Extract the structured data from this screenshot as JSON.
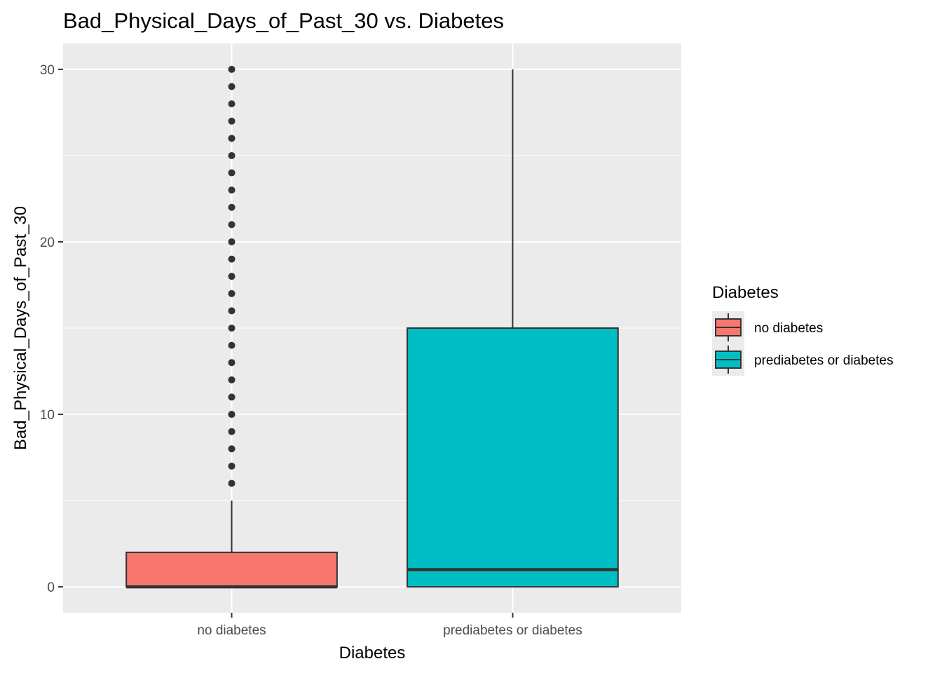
{
  "chart_data": {
    "type": "boxplot",
    "title": "Bad_Physical_Days_of_Past_30 vs. Diabetes",
    "xlabel": "Diabetes",
    "ylabel": "Bad_Physical_Days_of_Past_30",
    "ylim": [
      -1.5,
      31.5
    ],
    "yticks": [
      0,
      10,
      20,
      30
    ],
    "categories": [
      "no diabetes",
      "prediabetes or diabetes"
    ],
    "grid": true,
    "legend": {
      "title": "Diabetes",
      "position": "right",
      "entries": [
        "no diabetes",
        "prediabetes or diabetes"
      ]
    },
    "boxes": [
      {
        "category": "no diabetes",
        "color": "#F8766D",
        "min": 0,
        "q1": 0,
        "median": 0,
        "q3": 2,
        "max": 5,
        "outliers": [
          6,
          7,
          8,
          9,
          10,
          11,
          12,
          13,
          14,
          15,
          16,
          17,
          18,
          19,
          20,
          21,
          22,
          23,
          24,
          25,
          26,
          27,
          28,
          29,
          30
        ]
      },
      {
        "category": "prediabetes or diabetes",
        "color": "#00BFC4",
        "min": 0,
        "q1": 0,
        "median": 1,
        "q3": 15,
        "max": 30,
        "outliers": []
      }
    ]
  }
}
